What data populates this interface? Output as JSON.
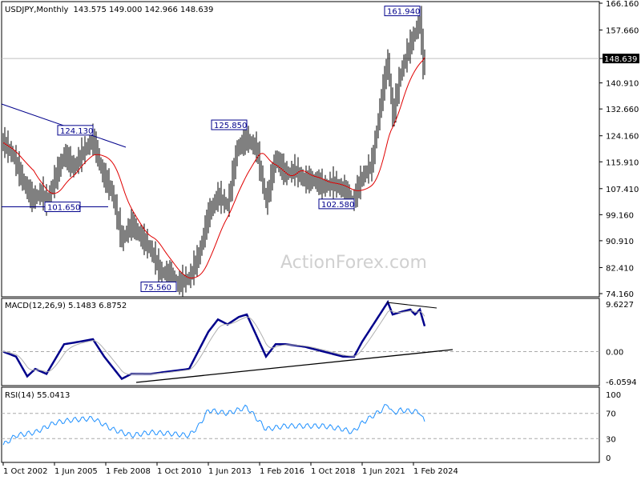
{
  "header": {
    "symbol": "USDJPY,Monthly",
    "ohlc": "143.575 149.000 142.966 148.639"
  },
  "watermark": "ActionForex.com",
  "colors": {
    "bars": "#000000",
    "ma": "#e00000",
    "macd": "#00008b",
    "signal": "#b0b0b0",
    "rsi": "#1e90ff",
    "trend": "#00008b"
  },
  "chart_data": [
    {
      "type": "ohlc",
      "title": "USDJPY,Monthly",
      "ylim": [
        74.16,
        166.16
      ],
      "yticks": [
        "166.160",
        "157.660",
        "148.639",
        "140.910",
        "132.660",
        "124.160",
        "115.910",
        "107.410",
        "99.160",
        "90.910",
        "82.410",
        "74.160"
      ],
      "current_price": "148.639",
      "annotations": [
        {
          "label": "161.940",
          "date": "2024-06",
          "value": 161.94
        },
        {
          "label": "124.130",
          "date": "2007-06",
          "value": 124.13
        },
        {
          "label": "125.850",
          "date": "2015-06",
          "value": 125.85
        },
        {
          "label": "101.650",
          "date": "2005-01",
          "value": 101.65
        },
        {
          "label": "102.580",
          "date": "2021-01",
          "value": 102.58
        },
        {
          "label": "75.560",
          "date": "2011-10",
          "value": 75.56
        }
      ],
      "closes": [
        [
          "2002-10",
          122
        ],
        [
          "2003-04",
          118
        ],
        [
          "2003-10",
          110
        ],
        [
          "2004-04",
          104
        ],
        [
          "2004-10",
          106
        ],
        [
          "2005-01",
          103
        ],
        [
          "2005-06",
          110
        ],
        [
          "2005-12",
          118
        ],
        [
          "2006-06",
          114
        ],
        [
          "2006-12",
          119
        ],
        [
          "2007-06",
          123
        ],
        [
          "2007-12",
          112
        ],
        [
          "2008-06",
          106
        ],
        [
          "2008-12",
          91
        ],
        [
          "2009-06",
          96
        ],
        [
          "2009-12",
          92
        ],
        [
          "2010-06",
          88
        ],
        [
          "2010-12",
          81
        ],
        [
          "2011-06",
          80
        ],
        [
          "2011-10",
          77
        ],
        [
          "2012-06",
          79
        ],
        [
          "2012-12",
          86
        ],
        [
          "2013-06",
          99
        ],
        [
          "2013-12",
          105
        ],
        [
          "2014-06",
          102
        ],
        [
          "2014-12",
          120
        ],
        [
          "2015-06",
          123
        ],
        [
          "2015-12",
          120
        ],
        [
          "2016-06",
          103
        ],
        [
          "2016-12",
          117
        ],
        [
          "2017-06",
          112
        ],
        [
          "2017-12",
          113
        ],
        [
          "2018-06",
          110
        ],
        [
          "2018-12",
          110
        ],
        [
          "2019-06",
          108
        ],
        [
          "2019-12",
          109
        ],
        [
          "2020-06",
          107
        ],
        [
          "2020-12",
          103
        ],
        [
          "2021-06",
          111
        ],
        [
          "2021-12",
          115
        ],
        [
          "2022-06",
          136
        ],
        [
          "2022-10",
          148
        ],
        [
          "2023-01",
          130
        ],
        [
          "2023-06",
          144
        ],
        [
          "2023-10",
          150
        ],
        [
          "2024-06",
          161
        ],
        [
          "2024-08",
          146
        ],
        [
          "2024-09",
          148.6
        ]
      ]
    },
    {
      "type": "line",
      "title": "MACD(12,26,9) 5.1483 6.8752",
      "ylim": [
        -6.0594,
        9.6227
      ],
      "yticks": [
        "9.6227",
        "0.00",
        "-6.0594"
      ],
      "macd": [
        [
          "2002-10",
          0
        ],
        [
          "2003-06",
          -1
        ],
        [
          "2004-01",
          -5
        ],
        [
          "2004-06",
          -3.5
        ],
        [
          "2005-01",
          -4.5
        ],
        [
          "2005-12",
          1.5
        ],
        [
          "2006-06",
          1.8
        ],
        [
          "2007-06",
          2.5
        ],
        [
          "2008-01",
          -1
        ],
        [
          "2008-12",
          -5.5
        ],
        [
          "2009-06",
          -4.5
        ],
        [
          "2010-06",
          -4.5
        ],
        [
          "2011-06",
          -4
        ],
        [
          "2012-06",
          -3.5
        ],
        [
          "2013-06",
          4
        ],
        [
          "2013-12",
          6.5
        ],
        [
          "2014-06",
          5.5
        ],
        [
          "2015-01",
          7
        ],
        [
          "2015-06",
          7.5
        ],
        [
          "2016-06",
          -1
        ],
        [
          "2016-12",
          1.5
        ],
        [
          "2017-06",
          1.5
        ],
        [
          "2018-06",
          1
        ],
        [
          "2019-06",
          0
        ],
        [
          "2020-06",
          -1
        ],
        [
          "2021-01",
          -1
        ],
        [
          "2021-06",
          2
        ],
        [
          "2022-06",
          8
        ],
        [
          "2022-10",
          10
        ],
        [
          "2023-01",
          7.5
        ],
        [
          "2023-06",
          8
        ],
        [
          "2023-12",
          8.5
        ],
        [
          "2024-03",
          7.5
        ],
        [
          "2024-06",
          8.5
        ],
        [
          "2024-09",
          5.15
        ]
      ]
    },
    {
      "type": "line",
      "title": "RSI(14) 55.0413",
      "ylim": [
        0,
        100
      ],
      "yticks": [
        "100",
        "70",
        "30",
        "0"
      ],
      "rsi": [
        [
          "2002-10",
          20
        ],
        [
          "2003-06",
          35
        ],
        [
          "2004-06",
          40
        ],
        [
          "2005-06",
          55
        ],
        [
          "2006-06",
          60
        ],
        [
          "2007-06",
          62
        ],
        [
          "2008-06",
          45
        ],
        [
          "2008-12",
          40
        ],
        [
          "2009-06",
          35
        ],
        [
          "2010-06",
          40
        ],
        [
          "2011-06",
          38
        ],
        [
          "2012-06",
          35
        ],
        [
          "2012-12",
          50
        ],
        [
          "2013-06",
          75
        ],
        [
          "2014-06",
          70
        ],
        [
          "2015-06",
          80
        ],
        [
          "2016-06",
          45
        ],
        [
          "2017-06",
          50
        ],
        [
          "2018-06",
          50
        ],
        [
          "2019-06",
          50
        ],
        [
          "2020-06",
          45
        ],
        [
          "2020-12",
          40
        ],
        [
          "2021-06",
          55
        ],
        [
          "2022-06",
          75
        ],
        [
          "2022-10",
          85
        ],
        [
          "2023-01",
          70
        ],
        [
          "2023-06",
          75
        ],
        [
          "2024-06",
          72
        ],
        [
          "2024-09",
          55
        ]
      ]
    }
  ],
  "xticks": [
    "1 Oct 2002",
    "1 Jun 2005",
    "1 Feb 2008",
    "1 Oct 2010",
    "1 Jun 2013",
    "1 Feb 2016",
    "1 Oct 2018",
    "1 Jun 2021",
    "1 Feb 2024"
  ]
}
